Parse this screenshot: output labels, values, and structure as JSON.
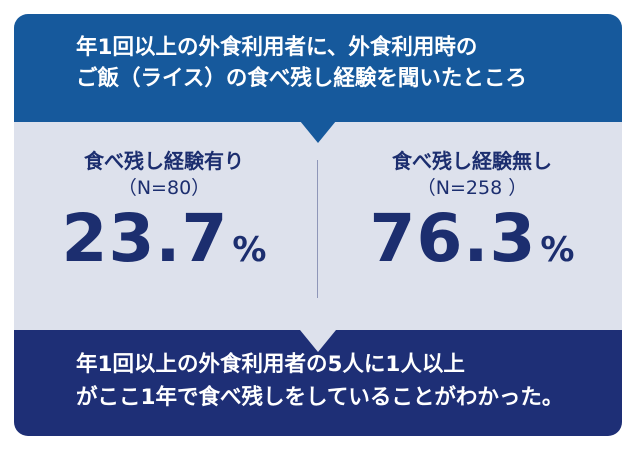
{
  "colors": {
    "top_band": "#16599c",
    "middle_band": "#dde1ec",
    "bottom_band": "#1e2f76",
    "stat_text": "#1c2e6f"
  },
  "question": {
    "line1": "年1回以上の外食利用者に、外食利用時の",
    "line2": "ご飯（ライス）の食べ残し経験を聞いたところ"
  },
  "stats": [
    {
      "label": "食べ残し経験有り",
      "n": "（N=80）",
      "value": "23.7",
      "unit": "%"
    },
    {
      "label": "食べ残し経験無し",
      "n": "（N=258 ）",
      "value": "76.3",
      "unit": "%"
    }
  ],
  "conclusion": {
    "line1": "年1回以上の外食利用者の5人に1人以上",
    "line2": "がここ1年で食べ残しをしていることがわかった。"
  }
}
